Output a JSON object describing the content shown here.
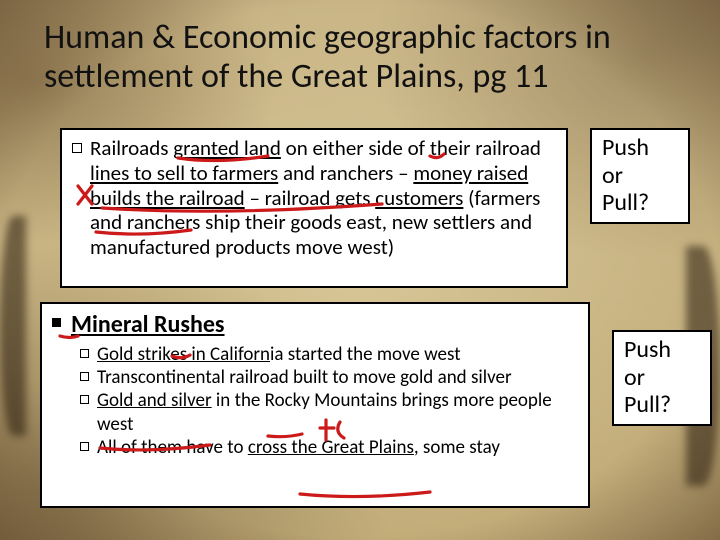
{
  "title": "Human & Economic geographic factors in settlement of the Great Plains, pg 11",
  "box1": {
    "bullet": "Railroads granted land on either side of their railroad lines to sell to farmers and ranchers – money raised builds the railroad – railroad gets customers (farmers and ranchers ship their goods east, new settlers and manufactured products move west)",
    "seg": {
      "a": "Railroads ",
      "b": "granted land",
      "c": " on either side of their railroad ",
      "d": "lines to sell to farmers",
      "e": " and ranchers – ",
      "f": "money raised builds the railroad",
      "g": " – railroad gets ",
      "h": "customers",
      "i": " (farmers and ranchers ship their goods east, new settlers and manufactured products move west)"
    }
  },
  "side1": {
    "l1": "Push",
    "l2": "or",
    "l3": "Pull?"
  },
  "box2": {
    "heading": "Mineral Rushes",
    "items": [
      {
        "a": "Gold strikes in California started the move west",
        "underline_end": 24
      },
      {
        "a": "Transcontinental railroad built to move gold and silver"
      },
      {
        "a": "Gold and silver in the Rocky Mountains brings more people west",
        "underline_end": 15
      },
      {
        "a": "All of them have to cross the Great Plains, some stay",
        "underline_start": 20,
        "underline_end": 42
      }
    ]
  },
  "side2": {
    "l1": "Push",
    "l2": "or",
    "l3": "Pull?"
  },
  "colors": {
    "annotation": "#cc1a1a",
    "text": "#000000",
    "box_bg": "#ffffff",
    "box_border": "#000000"
  }
}
